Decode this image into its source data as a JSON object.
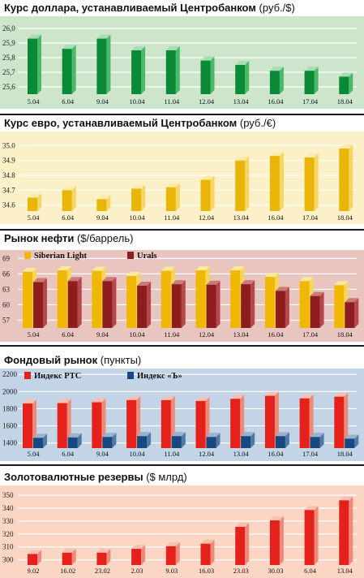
{
  "chart_data": [
    {
      "type": "bar",
      "title": "Курс доллара, устанавливаемый Центробанком",
      "unit": "(руб./$)",
      "categories": [
        "5.04",
        "6.04",
        "9.04",
        "10.04",
        "11.04",
        "12.04",
        "13.04",
        "16.04",
        "17.04",
        "18.04"
      ],
      "values": [
        25.93,
        25.86,
        25.93,
        25.85,
        25.85,
        25.78,
        25.75,
        25.71,
        25.71,
        25.67
      ],
      "yticks": [
        "25,6",
        "25,7",
        "25,8",
        "25,9",
        "26,0"
      ],
      "ylim": [
        25.55,
        26.05
      ],
      "colors": {
        "bg": "#cce5cb",
        "front": "#0a8a34",
        "side": "#4cb968",
        "top": "#a8dcb2",
        "grid": "#ffffff"
      }
    },
    {
      "type": "bar",
      "title": "Курс евро, устанавливаемый Центробанком",
      "unit": "(руб./€)",
      "categories": [
        "5.04",
        "6.04",
        "9.04",
        "10.04",
        "11.04",
        "12.04",
        "13.04",
        "16.04",
        "17.04",
        "18.04"
      ],
      "values": [
        34.65,
        34.7,
        34.64,
        34.71,
        34.72,
        34.77,
        34.9,
        34.93,
        34.92,
        34.98
      ],
      "yticks": [
        "34.6",
        "34.7",
        "34.8",
        "34.9",
        "35.0"
      ],
      "ylim": [
        34.56,
        35.04
      ],
      "colors": {
        "bg": "#fbf0c8",
        "front": "#e9b508",
        "side": "#f6d560",
        "top": "#fbebab",
        "grid": "#ffffff"
      }
    },
    {
      "type": "bar",
      "title": "Рынок нефти",
      "unit": "($/баррель)",
      "categories": [
        "5.04",
        "6.04",
        "9.04",
        "10.04",
        "11.04",
        "12.04",
        "13.04",
        "16.04",
        "17.04",
        "18.04"
      ],
      "series": [
        {
          "name": "Siberian Light",
          "values": [
            66.4,
            66.7,
            66.6,
            65.6,
            66.6,
            66.7,
            66.7,
            65.4,
            64.6,
            63.8
          ]
        },
        {
          "name": "Urals",
          "values": [
            64.4,
            64.6,
            64.6,
            63.7,
            64.0,
            63.9,
            64.0,
            62.7,
            61.7,
            60.5
          ]
        }
      ],
      "yticks": [
        "57",
        "60",
        "63",
        "66",
        "69"
      ],
      "ylim": [
        55.5,
        70
      ],
      "colors": {
        "bg": "#e9c5bf",
        "grid": "#ffffff",
        "s0": {
          "front": "#f0b805",
          "side": "#f7d657",
          "top": "#fbe9a0"
        },
        "s1": {
          "front": "#8e1d1f",
          "side": "#b5484a",
          "top": "#c97b74"
        }
      }
    },
    {
      "type": "bar",
      "title": "Фондовый рынок",
      "unit": "(пункты)",
      "categories": [
        "5.04",
        "6.04",
        "9.04",
        "10.04",
        "11.04",
        "12.04",
        "13.04",
        "16.04",
        "17.04",
        "18.04"
      ],
      "series": [
        {
          "name": "Индекс РТС",
          "values": [
            1860,
            1865,
            1875,
            1900,
            1900,
            1890,
            1915,
            1950,
            1920,
            1940
          ]
        },
        {
          "name": "Индекс «Ъ»",
          "values": [
            1460,
            1465,
            1470,
            1480,
            1480,
            1470,
            1480,
            1480,
            1470,
            1450
          ]
        }
      ],
      "yticks": [
        "1400",
        "1600",
        "1800",
        "2000",
        "2200"
      ],
      "ylim": [
        1340,
        2230
      ],
      "colors": {
        "bg": "#c3d4e6",
        "grid": "#ffffff",
        "s0": {
          "front": "#e4221b",
          "side": "#ef8a78",
          "top": "#f6c0b3"
        },
        "s1": {
          "front": "#16497f",
          "side": "#5079a8",
          "top": "#9ab2cd"
        }
      }
    },
    {
      "type": "bar",
      "title": "Золотовалютные резервы",
      "unit": "($ млрд)",
      "categories": [
        "9.02",
        "16.02",
        "23.02",
        "2.03",
        "9.03",
        "16.03",
        "23.03",
        "30.03",
        "6.04",
        "13.04"
      ],
      "values": [
        304.5,
        305.5,
        305.5,
        308.5,
        310.5,
        312.5,
        325.5,
        330.5,
        338.5,
        346.0
      ],
      "yticks": [
        "300",
        "310",
        "320",
        "330",
        "340",
        "350"
      ],
      "ylim": [
        296,
        355
      ],
      "colors": {
        "bg": "#fbd6c4",
        "front": "#e4221b",
        "side": "#ef8a78",
        "top": "#f6c0b3",
        "grid": "#ffffff"
      }
    }
  ]
}
